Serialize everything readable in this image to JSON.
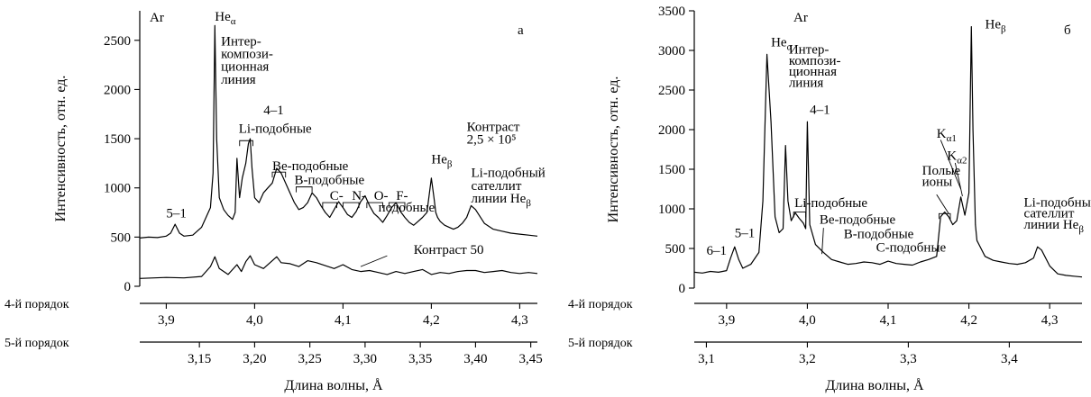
{
  "chart_data": [
    {
      "type": "line",
      "panel_label": "а",
      "element_label": "Ar",
      "ylabel": "Интенсивность, отн. ед.",
      "xlabel": "Длина волны, Å",
      "ylim": [
        0,
        2800
      ],
      "xlim": [
        3.87,
        4.32
      ],
      "y_ticks": [
        0,
        500,
        1000,
        1500,
        2000,
        2500
      ],
      "order_axes": [
        {
          "name": "4-й порядок",
          "ticks": [
            3.9,
            4.0,
            4.1,
            4.2,
            4.3
          ],
          "tick_labels": [
            "3,9",
            "4,0",
            "4,1",
            "4,2",
            "4,3"
          ]
        },
        {
          "name": "5-й порядок",
          "ticks": [
            3.15,
            3.2,
            3.25,
            3.3,
            3.35,
            3.4,
            3.45
          ],
          "tick_labels": [
            "3,15",
            "3,20",
            "3,25",
            "3,30",
            "3,35",
            "3,40",
            "3,45"
          ]
        }
      ],
      "series": [
        {
          "name": "Контраст 2,5 × 10⁵",
          "x": [
            3.87,
            3.88,
            3.89,
            3.9,
            3.905,
            3.91,
            3.915,
            3.92,
            3.93,
            3.94,
            3.945,
            3.95,
            3.953,
            3.955,
            3.957,
            3.96,
            3.965,
            3.97,
            3.975,
            3.978,
            3.98,
            3.983,
            3.986,
            3.99,
            3.993,
            3.995,
            3.997,
            4.0,
            4.005,
            4.01,
            4.015,
            4.02,
            4.025,
            4.03,
            4.035,
            4.04,
            4.045,
            4.05,
            4.055,
            4.06,
            4.065,
            4.07,
            4.075,
            4.08,
            4.085,
            4.09,
            4.095,
            4.1,
            4.105,
            4.11,
            4.115,
            4.12,
            4.125,
            4.13,
            4.135,
            4.14,
            4.145,
            4.15,
            4.155,
            4.16,
            4.165,
            4.17,
            4.175,
            4.18,
            4.185,
            4.19,
            4.195,
            4.2,
            4.203,
            4.205,
            4.207,
            4.21,
            4.215,
            4.22,
            4.225,
            4.23,
            4.235,
            4.24,
            4.245,
            4.25,
            4.26,
            4.27,
            4.28,
            4.29,
            4.3,
            4.31,
            4.32
          ],
          "y": [
            490,
            500,
            495,
            510,
            540,
            630,
            540,
            510,
            520,
            600,
            700,
            800,
            1150,
            2650,
            1500,
            900,
            780,
            720,
            680,
            750,
            1300,
            900,
            1100,
            1250,
            1450,
            1500,
            1200,
            900,
            850,
            950,
            1000,
            1050,
            1200,
            1150,
            1050,
            950,
            850,
            780,
            800,
            850,
            950,
            900,
            820,
            750,
            700,
            780,
            860,
            800,
            730,
            700,
            760,
            860,
            920,
            820,
            740,
            700,
            650,
            720,
            800,
            850,
            760,
            700,
            650,
            620,
            660,
            700,
            750,
            1100,
            900,
            750,
            700,
            660,
            620,
            600,
            580,
            600,
            640,
            700,
            820,
            780,
            640,
            580,
            560,
            540,
            530,
            520,
            510
          ]
        },
        {
          "name": "Контраст 50",
          "x": [
            3.87,
            3.9,
            3.92,
            3.94,
            3.95,
            3.955,
            3.96,
            3.97,
            3.98,
            3.985,
            3.99,
            3.995,
            4.0,
            4.01,
            4.02,
            4.025,
            4.03,
            4.04,
            4.05,
            4.06,
            4.07,
            4.08,
            4.09,
            4.1,
            4.11,
            4.12,
            4.13,
            4.14,
            4.15,
            4.16,
            4.17,
            4.18,
            4.19,
            4.2,
            4.21,
            4.22,
            4.23,
            4.24,
            4.25,
            4.26,
            4.27,
            4.28,
            4.29,
            4.3,
            4.31,
            4.32
          ],
          "y": [
            80,
            90,
            85,
            100,
            200,
            300,
            180,
            120,
            220,
            150,
            250,
            310,
            220,
            180,
            260,
            300,
            240,
            230,
            200,
            260,
            240,
            210,
            180,
            220,
            170,
            150,
            160,
            140,
            120,
            150,
            130,
            150,
            170,
            120,
            140,
            130,
            150,
            160,
            160,
            140,
            150,
            160,
            140,
            130,
            140,
            130
          ]
        }
      ],
      "annotations": [
        {
          "text": "5–1",
          "x": 3.9,
          "y": 700
        },
        {
          "text": "Heα",
          "x": 3.955,
          "y": 2700
        },
        {
          "text": "Интер-",
          "x": 3.962,
          "y": 2450
        },
        {
          "text": "компози-",
          "x": 3.962,
          "y": 2320
        },
        {
          "text": "ционная",
          "x": 3.962,
          "y": 2190
        },
        {
          "text": "линия",
          "x": 3.962,
          "y": 2060
        },
        {
          "text": "4–1",
          "x": 4.01,
          "y": 1750
        },
        {
          "text": "Li-подобные",
          "x": 3.982,
          "y": 1560
        },
        {
          "text": "Be-подобные",
          "x": 4.02,
          "y": 1180
        },
        {
          "text": "B-подобные",
          "x": 4.045,
          "y": 1040
        },
        {
          "text": "C-",
          "x": 4.085,
          "y": 880
        },
        {
          "text": "N-",
          "x": 4.11,
          "y": 880
        },
        {
          "text": "O-",
          "x": 4.135,
          "y": 880
        },
        {
          "text": "F-",
          "x": 4.16,
          "y": 880
        },
        {
          "text": "подобные",
          "x": 4.14,
          "y": 760
        },
        {
          "text": "Heβ",
          "x": 4.2,
          "y": 1250
        },
        {
          "text": "Контраст",
          "x": 4.24,
          "y": 1580
        },
        {
          "text": "2,5 × 10⁵",
          "x": 4.24,
          "y": 1450
        },
        {
          "text": "Li-подобный",
          "x": 4.245,
          "y": 1110
        },
        {
          "text": "сателлит",
          "x": 4.245,
          "y": 980
        },
        {
          "text": "линии Heβ",
          "x": 4.245,
          "y": 850
        },
        {
          "text": "Контраст 50",
          "x": 4.18,
          "y": 330
        }
      ]
    },
    {
      "type": "line",
      "panel_label": "б",
      "element_label": "Ar",
      "ylabel": "Интенсивность, отн. ед.",
      "xlabel": "Длина волны, Å",
      "ylim": [
        0,
        3500
      ],
      "xlim": [
        3.86,
        4.34
      ],
      "y_ticks": [
        0,
        500,
        1000,
        1500,
        2000,
        2500,
        3000,
        3500
      ],
      "order_axes": [
        {
          "name": "4-й порядок",
          "ticks": [
            3.9,
            4.0,
            4.1,
            4.2,
            4.3
          ],
          "tick_labels": [
            "3,9",
            "4,0",
            "4,1",
            "4,2",
            "4,3"
          ]
        },
        {
          "name": "5-й порядок",
          "ticks": [
            3.1,
            3.2,
            3.3,
            3.4
          ],
          "tick_labels": [
            "3,1",
            "3,2",
            "3,3",
            "3,4"
          ]
        }
      ],
      "series": [
        {
          "name": "Ar",
          "x": [
            3.86,
            3.87,
            3.88,
            3.89,
            3.9,
            3.905,
            3.91,
            3.915,
            3.92,
            3.93,
            3.94,
            3.945,
            3.95,
            3.955,
            3.96,
            3.965,
            3.97,
            3.973,
            3.976,
            3.98,
            3.985,
            3.99,
            3.995,
            3.998,
            4.0,
            4.003,
            4.01,
            4.02,
            4.03,
            4.04,
            4.05,
            4.06,
            4.07,
            4.08,
            4.09,
            4.1,
            4.11,
            4.12,
            4.13,
            4.14,
            4.15,
            4.16,
            4.165,
            4.17,
            4.175,
            4.18,
            4.185,
            4.19,
            4.195,
            4.2,
            4.203,
            4.205,
            4.208,
            4.21,
            4.215,
            4.22,
            4.23,
            4.24,
            4.25,
            4.26,
            4.27,
            4.28,
            4.285,
            4.29,
            4.3,
            4.31,
            4.32,
            4.33,
            4.34
          ],
          "y": [
            200,
            190,
            210,
            200,
            220,
            380,
            520,
            360,
            250,
            300,
            450,
            1100,
            2950,
            2100,
            900,
            700,
            750,
            1800,
            1100,
            850,
            950,
            880,
            820,
            750,
            2100,
            800,
            550,
            450,
            360,
            330,
            300,
            310,
            330,
            320,
            300,
            340,
            310,
            300,
            290,
            330,
            360,
            400,
            900,
            960,
            900,
            800,
            850,
            1150,
            920,
            1200,
            3300,
            2000,
            800,
            600,
            500,
            400,
            350,
            330,
            310,
            300,
            320,
            380,
            520,
            480,
            280,
            180,
            160,
            150,
            140
          ]
        }
      ],
      "annotations": [
        {
          "text": "6–1",
          "x": 3.875,
          "y": 420
        },
        {
          "text": "5–1",
          "x": 3.91,
          "y": 640
        },
        {
          "text": "Heα",
          "x": 3.955,
          "y": 3050
        },
        {
          "text": "Интер-",
          "x": 3.977,
          "y": 2960
        },
        {
          "text": "компози-",
          "x": 3.977,
          "y": 2820
        },
        {
          "text": "ционная",
          "x": 3.977,
          "y": 2680
        },
        {
          "text": "линия",
          "x": 3.977,
          "y": 2540
        },
        {
          "text": "4–1",
          "x": 4.003,
          "y": 2200
        },
        {
          "text": "Li-подобные",
          "x": 3.984,
          "y": 1020
        },
        {
          "text": "Be-подобные",
          "x": 4.015,
          "y": 810
        },
        {
          "text": "B-подобные",
          "x": 4.045,
          "y": 630
        },
        {
          "text": "C-подобные",
          "x": 4.085,
          "y": 460
        },
        {
          "text": "Kα1",
          "x": 4.16,
          "y": 1900
        },
        {
          "text": "Kα2",
          "x": 4.173,
          "y": 1620
        },
        {
          "text": "Полые",
          "x": 4.142,
          "y": 1430
        },
        {
          "text": "ионы",
          "x": 4.142,
          "y": 1290
        },
        {
          "text": "Heβ",
          "x": 4.22,
          "y": 3280
        },
        {
          "text": "Li-подобный",
          "x": 4.268,
          "y": 1030
        },
        {
          "text": "сателлит",
          "x": 4.268,
          "y": 890
        },
        {
          "text": "линии Heβ",
          "x": 4.268,
          "y": 750
        }
      ]
    }
  ]
}
